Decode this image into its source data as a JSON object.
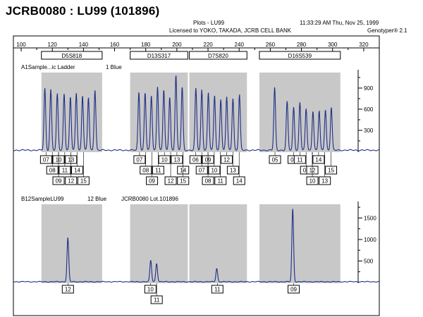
{
  "page_title": "JCRB0080 : LU99 (101896)",
  "header": {
    "plot_title": "Plots - LU99",
    "license": "Licensed to YOKO, TAKADA, JCRB CELL BANK",
    "timestamp": "11:33:29 AM Thu, Nov 25, 1999",
    "app": "Genotyper® 2.1"
  },
  "colors": {
    "trace": "#1f2f86",
    "shade": "#c8c8c8",
    "axis": "#000000"
  },
  "chart_data": {
    "type": "line",
    "x_axis": {
      "min": 95,
      "max": 330,
      "ticks": [
        100,
        120,
        140,
        160,
        180,
        200,
        220,
        240,
        260,
        280,
        300,
        320
      ]
    },
    "markers": [
      {
        "name": "D5S818",
        "range": [
          113,
          152
        ]
      },
      {
        "name": "D13S317",
        "range": [
          170,
          207
        ]
      },
      {
        "name": "D7S820",
        "range": [
          208,
          245
        ]
      },
      {
        "name": "D16S539",
        "range": [
          253,
          305
        ]
      }
    ],
    "panels": [
      {
        "label": "A1Sample...ic Ladder",
        "channel": "1 Blue",
        "lot": "",
        "y_ticks": [
          300,
          600,
          900
        ],
        "y_max": 1200,
        "peaks": [
          {
            "x": 115.2,
            "h": 880
          },
          {
            "x": 119.0,
            "h": 860
          },
          {
            "x": 123.2,
            "h": 800
          },
          {
            "x": 127.6,
            "h": 810
          },
          {
            "x": 131.6,
            "h": 760
          },
          {
            "x": 135.4,
            "h": 820
          },
          {
            "x": 139.4,
            "h": 780
          },
          {
            "x": 143.2,
            "h": 750
          },
          {
            "x": 147.4,
            "h": 860
          },
          {
            "x": 175.6,
            "h": 830
          },
          {
            "x": 179.6,
            "h": 820
          },
          {
            "x": 183.6,
            "h": 780
          },
          {
            "x": 187.6,
            "h": 910
          },
          {
            "x": 191.6,
            "h": 860
          },
          {
            "x": 195.4,
            "h": 760
          },
          {
            "x": 199.4,
            "h": 1070
          },
          {
            "x": 203.4,
            "h": 900
          },
          {
            "x": 212.2,
            "h": 880
          },
          {
            "x": 216.0,
            "h": 860
          },
          {
            "x": 220.2,
            "h": 820
          },
          {
            "x": 224.2,
            "h": 780
          },
          {
            "x": 228.2,
            "h": 730
          },
          {
            "x": 232.0,
            "h": 760
          },
          {
            "x": 236.0,
            "h": 740
          },
          {
            "x": 240.2,
            "h": 790
          },
          {
            "x": 262.8,
            "h": 890
          },
          {
            "x": 270.8,
            "h": 690
          },
          {
            "x": 275.0,
            "h": 610
          },
          {
            "x": 279.0,
            "h": 680
          },
          {
            "x": 283.0,
            "h": 590
          },
          {
            "x": 287.4,
            "h": 560
          },
          {
            "x": 291.4,
            "h": 560
          },
          {
            "x": 295.4,
            "h": 580
          },
          {
            "x": 299.2,
            "h": 610
          }
        ],
        "allele_rows": [
          [
            {
              "x": 116,
              "label": "07"
            },
            {
              "x": 124,
              "label": "10"
            },
            {
              "x": 132,
              "label": "13"
            },
            {
              "x": 176,
              "label": "07"
            },
            {
              "x": 192,
              "label": "10"
            },
            {
              "x": 200,
              "label": "13"
            },
            {
              "x": 212,
              "label": "06"
            },
            {
              "x": 220,
              "label": "09"
            },
            {
              "x": 232,
              "label": "12"
            },
            {
              "x": 263,
              "label": "05"
            },
            {
              "x": 275,
              "label": "08"
            },
            {
              "x": 279,
              "label": "11"
            },
            {
              "x": 291,
              "label": "14"
            }
          ],
          [
            {
              "x": 120,
              "label": "08"
            },
            {
              "x": 128,
              "label": "11"
            },
            {
              "x": 136,
              "label": "14"
            },
            {
              "x": 180,
              "label": "08"
            },
            {
              "x": 188,
              "label": "11"
            },
            {
              "x": 204,
              "label": "14"
            },
            {
              "x": 216,
              "label": "07"
            },
            {
              "x": 224,
              "label": "10"
            },
            {
              "x": 236,
              "label": "13"
            },
            {
              "x": 283,
              "label": "09"
            },
            {
              "x": 287,
              "label": "12"
            },
            {
              "x": 299,
              "label": "15"
            }
          ],
          [
            {
              "x": 124,
              "label": "09"
            },
            {
              "x": 132,
              "label": "12"
            },
            {
              "x": 140,
              "label": "15"
            },
            {
              "x": 184,
              "label": "09"
            },
            {
              "x": 196,
              "label": "12"
            },
            {
              "x": 204,
              "label": "15"
            },
            {
              "x": 220,
              "label": "08"
            },
            {
              "x": 228,
              "label": "11"
            },
            {
              "x": 240,
              "label": "14"
            },
            {
              "x": 287,
              "label": "10"
            },
            {
              "x": 295,
              "label": "13"
            }
          ]
        ]
      },
      {
        "label": "B12SampleLU99",
        "channel": "12 Blue",
        "lot": "JCRB0080  Lot.101896",
        "y_ticks": [
          500,
          1000,
          1500
        ],
        "y_max": 1950,
        "peaks": [
          {
            "x": 130.0,
            "h": 1020
          },
          {
            "x": 183.2,
            "h": 500
          },
          {
            "x": 187.0,
            "h": 430
          },
          {
            "x": 225.6,
            "h": 310
          },
          {
            "x": 274.4,
            "h": 1700
          }
        ],
        "allele_rows": [
          [
            {
              "x": 130,
              "label": "12"
            },
            {
              "x": 183,
              "label": "10"
            },
            {
              "x": 226,
              "label": "11"
            },
            {
              "x": 275,
              "label": "09"
            }
          ],
          [
            {
              "x": 187,
              "label": "11"
            }
          ]
        ]
      }
    ]
  }
}
